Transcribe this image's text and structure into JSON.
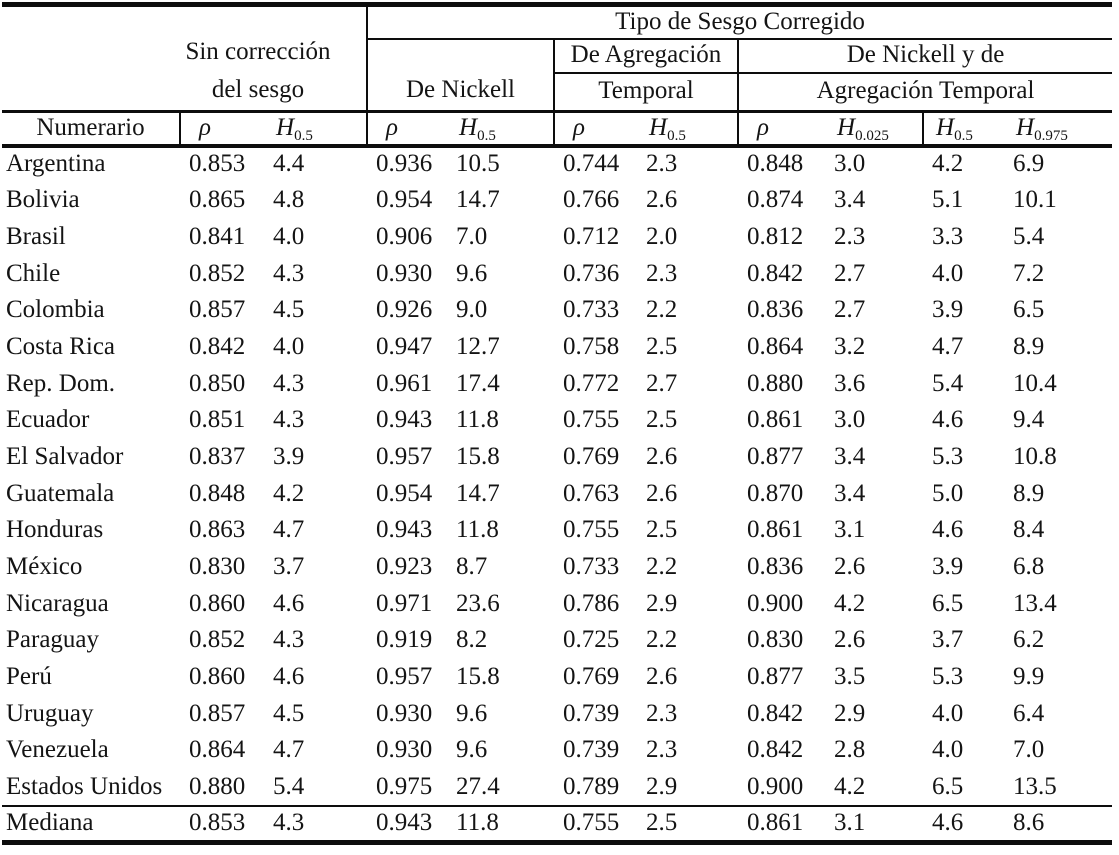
{
  "table": {
    "header": {
      "tipo": "Tipo de Sesgo Corregido",
      "sin_correccion_line1": "Sin corrección",
      "sin_correccion_line2": "del sesgo",
      "de_nickell": "De Nickell",
      "de_agregacion_line1": "De Agregación",
      "de_agregacion_line2": "Temporal",
      "nickell_agregacion_line1": "De Nickell y de",
      "nickell_agregacion_line2": "Agregación Temporal",
      "numerario": "Numerario",
      "rho": "ρ",
      "rho_hat": "ˆ",
      "h": "H",
      "sub_05": "0.5",
      "sub_0025": "0.025",
      "sub_0975": "0.975"
    },
    "rows": [
      {
        "name": "Argentina",
        "values": [
          "0.853",
          "4.4",
          "0.936",
          "10.5",
          "0.744",
          "2.3",
          "0.848",
          "3.0",
          "4.2",
          "6.9"
        ]
      },
      {
        "name": "Bolivia",
        "values": [
          "0.865",
          "4.8",
          "0.954",
          "14.7",
          "0.766",
          "2.6",
          "0.874",
          "3.4",
          "5.1",
          "10.1"
        ]
      },
      {
        "name": "Brasil",
        "values": [
          "0.841",
          "4.0",
          "0.906",
          "7.0",
          "0.712",
          "2.0",
          "0.812",
          "2.3",
          "3.3",
          "5.4"
        ]
      },
      {
        "name": "Chile",
        "values": [
          "0.852",
          "4.3",
          "0.930",
          "9.6",
          "0.736",
          "2.3",
          "0.842",
          "2.7",
          "4.0",
          "7.2"
        ]
      },
      {
        "name": "Colombia",
        "values": [
          "0.857",
          "4.5",
          "0.926",
          "9.0",
          "0.733",
          "2.2",
          "0.836",
          "2.7",
          "3.9",
          "6.5"
        ]
      },
      {
        "name": "Costa Rica",
        "values": [
          "0.842",
          "4.0",
          "0.947",
          "12.7",
          "0.758",
          "2.5",
          "0.864",
          "3.2",
          "4.7",
          "8.9"
        ]
      },
      {
        "name": "Rep. Dom.",
        "values": [
          "0.850",
          "4.3",
          "0.961",
          "17.4",
          "0.772",
          "2.7",
          "0.880",
          "3.6",
          "5.4",
          "10.4"
        ]
      },
      {
        "name": "Ecuador",
        "values": [
          "0.851",
          "4.3",
          "0.943",
          "11.8",
          "0.755",
          "2.5",
          "0.861",
          "3.0",
          "4.6",
          "9.4"
        ]
      },
      {
        "name": "El Salvador",
        "values": [
          "0.837",
          "3.9",
          "0.957",
          "15.8",
          "0.769",
          "2.6",
          "0.877",
          "3.4",
          "5.3",
          "10.8"
        ]
      },
      {
        "name": "Guatemala",
        "values": [
          "0.848",
          "4.2",
          "0.954",
          "14.7",
          "0.763",
          "2.6",
          "0.870",
          "3.4",
          "5.0",
          "8.9"
        ]
      },
      {
        "name": "Honduras",
        "values": [
          "0.863",
          "4.7",
          "0.943",
          "11.8",
          "0.755",
          "2.5",
          "0.861",
          "3.1",
          "4.6",
          "8.4"
        ]
      },
      {
        "name": "México",
        "values": [
          "0.830",
          "3.7",
          "0.923",
          "8.7",
          "0.733",
          "2.2",
          "0.836",
          "2.6",
          "3.9",
          "6.8"
        ]
      },
      {
        "name": "Nicaragua",
        "values": [
          "0.860",
          "4.6",
          "0.971",
          "23.6",
          "0.786",
          "2.9",
          "0.900",
          "4.2",
          "6.5",
          "13.4"
        ]
      },
      {
        "name": "Paraguay",
        "values": [
          "0.852",
          "4.3",
          "0.919",
          "8.2",
          "0.725",
          "2.2",
          "0.830",
          "2.6",
          "3.7",
          "6.2"
        ]
      },
      {
        "name": "Perú",
        "values": [
          "0.860",
          "4.6",
          "0.957",
          "15.8",
          "0.769",
          "2.6",
          "0.877",
          "3.5",
          "5.3",
          "9.9"
        ]
      },
      {
        "name": "Uruguay",
        "values": [
          "0.857",
          "4.5",
          "0.930",
          "9.6",
          "0.739",
          "2.3",
          "0.842",
          "2.9",
          "4.0",
          "6.4"
        ]
      },
      {
        "name": "Venezuela",
        "values": [
          "0.864",
          "4.7",
          "0.930",
          "9.6",
          "0.739",
          "2.3",
          "0.842",
          "2.8",
          "4.0",
          "7.0"
        ]
      },
      {
        "name": "Estados Unidos",
        "values": [
          "0.880",
          "5.4",
          "0.975",
          "27.4",
          "0.789",
          "2.9",
          "0.900",
          "4.2",
          "6.5",
          "13.5"
        ]
      },
      {
        "name": "Mediana",
        "values": [
          "0.853",
          "4.3",
          "0.943",
          "11.8",
          "0.755",
          "2.5",
          "0.861",
          "3.1",
          "4.6",
          "8.6"
        ]
      }
    ]
  }
}
